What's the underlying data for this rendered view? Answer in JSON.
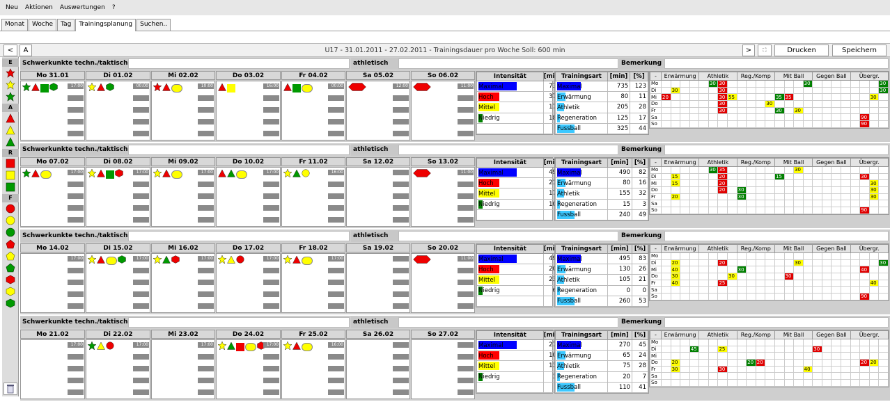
{
  "menu": [
    "Neu",
    "Aktionen",
    "Auswertungen",
    "?"
  ],
  "tabs": [
    "Monat",
    "Woche",
    "Tag",
    "Trainingsplanung",
    "Suchen.."
  ],
  "active_tab": "Trainingsplanung",
  "toolbar": {
    "prev": "<",
    "a": "A",
    "title": "U17 - 31.01.2011 - 27.02.2011 - Trainingsdauer pro Woche Soll: 600 min",
    "next": ">",
    "print": "Drucken",
    "save": "Speichern"
  },
  "legend": {
    "e": "E",
    "a": "A",
    "r": "R",
    "f": "F"
  },
  "labels": {
    "technical": "Schwerkunkte techn./taktisch",
    "athletic": "athletisch",
    "remark": "Bemerkung",
    "intensity": "Intensität",
    "min": "[min]",
    "pct": "[%]",
    "type": "Trainingsart",
    "dash": "-"
  },
  "intensity_rows": [
    "Maximal",
    "Hoch",
    "Mittel",
    "Niedrig",
    ""
  ],
  "intensity_colors": [
    "#0000ff",
    "#ff0000",
    "#ffff00",
    "#008000",
    ""
  ],
  "type_rows": [
    "Maximal",
    "Erwärmung",
    "Athletik",
    "Regeneration",
    "Fussball"
  ],
  "type_colors": [
    "#0000ff",
    "#3cc8ff",
    "#3cc8ff",
    "#3cc8ff",
    "#3cc8ff"
  ],
  "grid_cols": [
    "Erwärmung",
    "Athletik",
    "Reg./Komp",
    "Mit Ball",
    "Gegen Ball",
    "Übergr."
  ],
  "grid_days": [
    "Mo",
    "Di",
    "Mi",
    "Do",
    "Fr",
    "Sa",
    "So"
  ],
  "weeks": [
    {
      "days": [
        "Mo 31.01",
        "Di 01.02",
        "Mi 02.02",
        "Do 03.02",
        "Fr 04.02",
        "Sa 05.02",
        "So 06.02"
      ],
      "times": [
        "17:00",
        "00:00",
        "10:00",
        "16:00",
        "00:00",
        "12:00",
        "11:00"
      ],
      "intensity": [
        [
          "735",
          "123"
        ],
        [
          "375",
          "51"
        ],
        [
          "175",
          "24"
        ],
        [
          "185",
          "25"
        ],
        [
          "0",
          "0"
        ]
      ],
      "types": [
        [
          "735",
          "123"
        ],
        [
          "80",
          "11"
        ],
        [
          "205",
          "28"
        ],
        [
          "125",
          "17"
        ],
        [
          "325",
          "44"
        ]
      ],
      "grid": [
        [
          {
            "c": 5,
            "v": "30",
            "k": "g"
          },
          {
            "c": 6,
            "v": "30",
            "k": "r"
          },
          {
            "c": 15,
            "v": "30",
            "k": "g"
          },
          {
            "c": 23,
            "v": "30",
            "k": "g"
          }
        ],
        [
          {
            "c": 1,
            "v": "30",
            "k": "y"
          },
          {
            "c": 6,
            "v": "30",
            "k": "r"
          },
          {
            "c": 23,
            "v": "30",
            "k": "g"
          }
        ],
        [
          {
            "c": 0,
            "v": "20",
            "k": "r"
          },
          {
            "c": 6,
            "v": "30",
            "k": "r"
          },
          {
            "c": 7,
            "v": "55",
            "k": "y"
          },
          {
            "c": 12,
            "v": "35",
            "k": "g"
          },
          {
            "c": 13,
            "v": "35",
            "k": "r"
          },
          {
            "c": 22,
            "v": "30",
            "k": "y"
          }
        ],
        [
          {
            "c": 6,
            "v": "30",
            "k": "r"
          },
          {
            "c": 11,
            "v": "30",
            "k": "y"
          }
        ],
        [
          {
            "c": 6,
            "v": "30",
            "k": "r"
          },
          {
            "c": 12,
            "v": "30",
            "k": "g"
          },
          {
            "c": 14,
            "v": "30",
            "k": "y"
          }
        ],
        [
          {
            "c": 21,
            "v": "90",
            "k": "r"
          }
        ],
        [
          {
            "c": 21,
            "v": "90",
            "k": "r"
          }
        ]
      ]
    },
    {
      "days": [
        "Mo 07.02",
        "Di 08.02",
        "Mi 09.02",
        "Do 10.02",
        "Fr 11.02",
        "Sa 12.02",
        "So 13.02"
      ],
      "times": [
        "17:00",
        "17:00",
        "17:00",
        "17:00",
        "16:00",
        "",
        "11:00"
      ],
      "intensity": [
        [
          "490",
          "82"
        ],
        [
          "215",
          "44"
        ],
        [
          "170",
          "35"
        ],
        [
          "105",
          "21"
        ],
        [
          "0",
          "0"
        ]
      ],
      "types": [
        [
          "490",
          "82"
        ],
        [
          "80",
          "16"
        ],
        [
          "155",
          "32"
        ],
        [
          "15",
          "3"
        ],
        [
          "240",
          "49"
        ]
      ],
      "grid": [
        [
          {
            "c": 5,
            "v": "30",
            "k": "g"
          },
          {
            "c": 6,
            "v": "35",
            "k": "r"
          },
          {
            "c": 14,
            "v": "30",
            "k": "y"
          }
        ],
        [
          {
            "c": 1,
            "v": "15",
            "k": "y"
          },
          {
            "c": 6,
            "v": "20",
            "k": "r"
          },
          {
            "c": 12,
            "v": "15",
            "k": "g"
          },
          {
            "c": 21,
            "v": "30",
            "k": "r"
          }
        ],
        [
          {
            "c": 1,
            "v": "15",
            "k": "y"
          },
          {
            "c": 6,
            "v": "20",
            "k": "r"
          },
          {
            "c": 22,
            "v": "30",
            "k": "y"
          }
        ],
        [
          {
            "c": 6,
            "v": "20",
            "k": "r"
          },
          {
            "c": 8,
            "v": "30",
            "k": "g"
          },
          {
            "c": 22,
            "v": "30",
            "k": "y"
          }
        ],
        [
          {
            "c": 1,
            "v": "20",
            "k": "y"
          },
          {
            "c": 8,
            "v": "30",
            "k": "g"
          },
          {
            "c": 22,
            "v": "30",
            "k": "y"
          }
        ],
        [],
        [
          {
            "c": 21,
            "v": "90",
            "k": "r"
          }
        ]
      ]
    },
    {
      "days": [
        "Mo 14.02",
        "Di 15.02",
        "Mi 16.02",
        "Do 17.02",
        "Fr 18.02",
        "Sa 19.02",
        "So 20.02"
      ],
      "times": [
        "17:00",
        "17:00",
        "17:00",
        "17:00",
        "17:00",
        "",
        "11:00"
      ],
      "intensity": [
        [
          "495",
          "83"
        ],
        [
          "205",
          "41"
        ],
        [
          "230",
          "46"
        ],
        [
          "60",
          "12"
        ],
        [
          "0",
          "0"
        ]
      ],
      "types": [
        [
          "495",
          "83"
        ],
        [
          "130",
          "26"
        ],
        [
          "105",
          "21"
        ],
        [
          "0",
          "0"
        ],
        [
          "260",
          "53"
        ]
      ],
      "grid": [
        [],
        [
          {
            "c": 1,
            "v": "20",
            "k": "y"
          },
          {
            "c": 6,
            "v": "20",
            "k": "r"
          },
          {
            "c": 14,
            "v": "30",
            "k": "y"
          },
          {
            "c": 23,
            "v": "30",
            "k": "g"
          }
        ],
        [
          {
            "c": 1,
            "v": "40",
            "k": "y"
          },
          {
            "c": 8,
            "v": "30",
            "k": "g"
          },
          {
            "c": 21,
            "v": "40",
            "k": "r"
          }
        ],
        [
          {
            "c": 1,
            "v": "30",
            "k": "y"
          },
          {
            "c": 7,
            "v": "30",
            "k": "y"
          },
          {
            "c": 13,
            "v": "30",
            "k": "r"
          }
        ],
        [
          {
            "c": 1,
            "v": "40",
            "k": "y"
          },
          {
            "c": 6,
            "v": "25",
            "k": "r"
          },
          {
            "c": 22,
            "v": "40",
            "k": "y"
          }
        ],
        [],
        [
          {
            "c": 21,
            "v": "90",
            "k": "r"
          }
        ]
      ]
    },
    {
      "days": [
        "Mo 21.02",
        "Di 22.02",
        "Mi 23.02",
        "Do 24.02",
        "Fr 25.02",
        "Sa 26.02",
        "So 27.02"
      ],
      "times": [
        "17:00",
        "17:00",
        "17:00",
        "17:00",
        "16:00",
        "",
        ""
      ],
      "intensity": [
        [
          "270",
          "45"
        ],
        [
          "100",
          "37"
        ],
        [
          "135",
          "50"
        ],
        [
          "35",
          "13"
        ],
        [
          "0",
          "0"
        ]
      ],
      "types": [
        [
          "270",
          "45"
        ],
        [
          "65",
          "24"
        ],
        [
          "75",
          "28"
        ],
        [
          "20",
          "7"
        ],
        [
          "110",
          "41"
        ]
      ],
      "grid": [
        [],
        [
          {
            "c": 3,
            "v": "45",
            "k": "g"
          },
          {
            "c": 6,
            "v": "25",
            "k": "y"
          },
          {
            "c": 16,
            "v": "30",
            "k": "r"
          }
        ],
        [],
        [
          {
            "c": 1,
            "v": "20",
            "k": "y"
          },
          {
            "c": 9,
            "v": "20",
            "k": "g"
          },
          {
            "c": 10,
            "v": "20",
            "k": "r"
          },
          {
            "c": 21,
            "v": "20",
            "k": "r"
          },
          {
            "c": 22,
            "v": "20",
            "k": "y"
          }
        ],
        [
          {
            "c": 1,
            "v": "30",
            "k": "y"
          },
          {
            "c": 6,
            "v": "30",
            "k": "r"
          },
          {
            "c": 15,
            "v": "40",
            "k": "y"
          }
        ],
        [],
        []
      ]
    }
  ]
}
